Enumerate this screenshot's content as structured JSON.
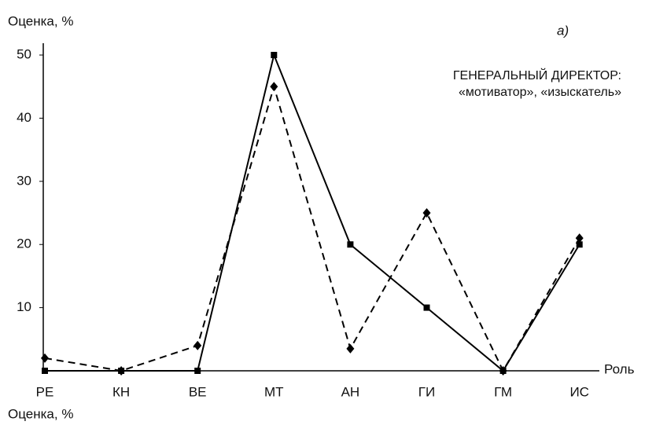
{
  "chart_data": {
    "type": "line",
    "ylabel": "Оценка, %",
    "xlabel": "Роль",
    "footer": "Оценка, %",
    "annotations": [
      "а)",
      "ГЕНЕРАЛЬНЫЙ ДИРЕКТОР:",
      "«мотиватор», «изыскатель»"
    ],
    "categories": [
      "РЕ",
      "КН",
      "ВЕ",
      "МТ",
      "АН",
      "ГИ",
      "ГМ",
      "ИС"
    ],
    "series": [
      {
        "color": "#000000",
        "dash": false,
        "marker": "square",
        "values": [
          0,
          0,
          0,
          50,
          20,
          10,
          0,
          20
        ]
      },
      {
        "color": "#000000",
        "dash": true,
        "marker": "diamond",
        "values": [
          2,
          0,
          4,
          45,
          3.5,
          25,
          0,
          21
        ]
      }
    ],
    "ylim": [
      0,
      51
    ],
    "yticks": [
      10,
      20,
      30,
      40,
      50
    ]
  }
}
